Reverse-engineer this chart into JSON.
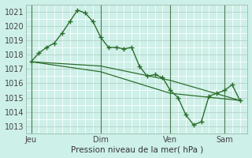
{
  "title": "Pression niveau de la mer( hPa )",
  "bg_color": "#cdf0e8",
  "grid_color": "#ffffff",
  "line_color": "#2d6e2d",
  "ylim": [
    1012.5,
    1021.5
  ],
  "yticks": [
    1013,
    1014,
    1015,
    1016,
    1017,
    1018,
    1019,
    1020,
    1021
  ],
  "xtick_positions": [
    0,
    54,
    108,
    150
  ],
  "xtick_labels": [
    "Jeu",
    "Dim",
    "Ven",
    "Sam"
  ],
  "vline_positions": [
    0,
    54,
    108,
    150
  ],
  "xlim": [
    -4,
    168
  ],
  "line1_x": [
    0,
    6,
    12,
    18,
    24,
    30,
    36,
    42,
    48,
    54,
    60,
    66,
    72,
    78,
    84,
    90,
    96,
    102,
    108,
    114,
    120,
    126,
    132,
    138,
    144,
    150,
    156,
    162
  ],
  "line1_y": [
    1017.5,
    1018.1,
    1018.5,
    1018.8,
    1019.5,
    1020.3,
    1021.1,
    1020.9,
    1020.3,
    1019.2,
    1018.5,
    1018.5,
    1018.4,
    1018.5,
    1017.2,
    1016.5,
    1016.6,
    1016.4,
    1015.5,
    1015.0,
    1013.8,
    1013.1,
    1013.3,
    1015.1,
    1015.3,
    1015.5,
    1015.9,
    1014.8
  ],
  "line2_x": [
    0,
    54,
    108,
    162
  ],
  "line2_y": [
    1017.5,
    1017.2,
    1016.2,
    1014.8
  ],
  "line3_x": [
    0,
    54,
    108,
    162
  ],
  "line3_y": [
    1017.5,
    1016.8,
    1015.3,
    1014.8
  ]
}
